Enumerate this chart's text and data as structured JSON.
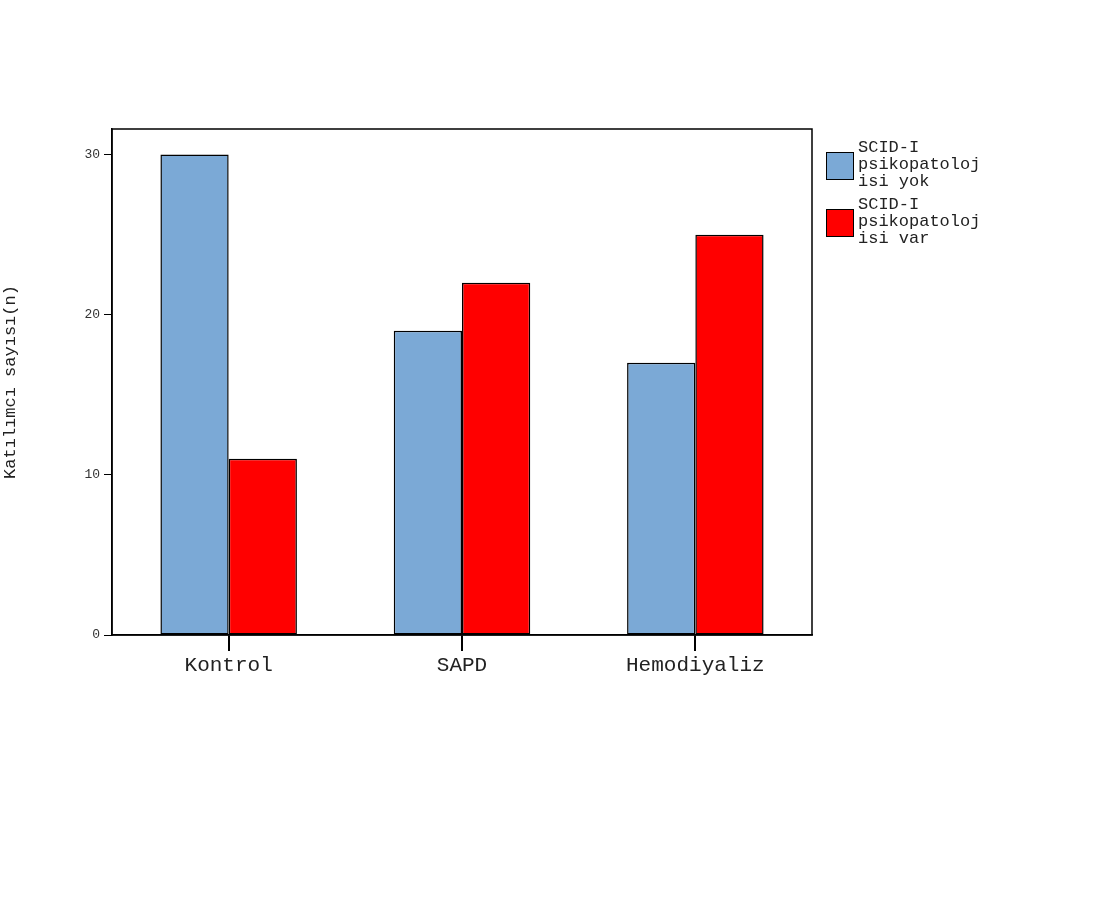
{
  "chart_data": {
    "type": "bar",
    "ylabel": "Katılımcı sayısı(n)",
    "categories": [
      "Kontrol",
      "SAPD",
      "Hemodiyaliz"
    ],
    "series": [
      {
        "name": "SCID-I psikopatolojisi yok",
        "color": "#7ba9d6",
        "values": [
          30,
          19,
          17
        ]
      },
      {
        "name": "SCID-I psikopatolojisi var",
        "color": "#ff0000",
        "values": [
          11,
          22,
          25
        ]
      }
    ],
    "ylim": [
      0,
      31.6
    ],
    "yticks": [
      0,
      10,
      20,
      30
    ],
    "grid": false,
    "legend": "right"
  }
}
